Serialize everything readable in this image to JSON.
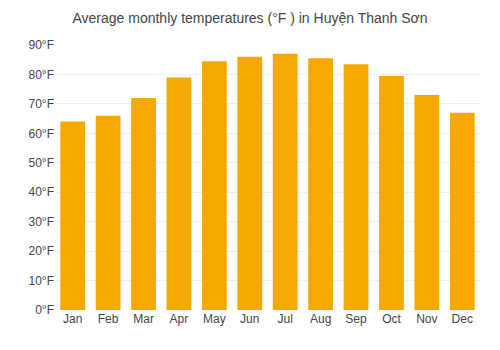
{
  "chart_data": {
    "type": "bar",
    "title": "Average monthly temperatures (°F ) in Huyện Thanh Sơn",
    "categories": [
      "Jan",
      "Feb",
      "Mar",
      "Apr",
      "May",
      "Jun",
      "Jul",
      "Aug",
      "Sep",
      "Oct",
      "Nov",
      "Dec"
    ],
    "values": [
      64,
      66,
      72,
      79,
      84.5,
      86,
      87,
      85.5,
      83.5,
      79.5,
      73,
      67
    ],
    "color": "#F5A800",
    "ylim": [
      0,
      90
    ],
    "yticks": [
      {
        "value": 0,
        "label": "0°F"
      },
      {
        "value": 10,
        "label": "10°F"
      },
      {
        "value": 20,
        "label": "20°F"
      },
      {
        "value": 30,
        "label": "30°F"
      },
      {
        "value": 40,
        "label": "40°F"
      },
      {
        "value": 50,
        "label": "50°F"
      },
      {
        "value": 60,
        "label": "60°F"
      },
      {
        "value": 70,
        "label": "70°F"
      },
      {
        "value": 80,
        "label": "80°F"
      },
      {
        "value": 90,
        "label": "90°F"
      }
    ],
    "grid": true
  }
}
